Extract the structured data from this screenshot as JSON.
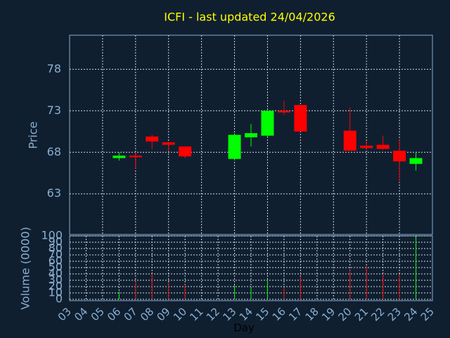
{
  "chart_data": {
    "type": "candlestick",
    "title": "ICFI - last updated 24/04/2026",
    "ylabel": "Price",
    "xlabel": "Day",
    "up_color": "#00ff00",
    "down_color": "#ff0000",
    "grid": true,
    "x": [
      6,
      7,
      8,
      9,
      10,
      13,
      14,
      15,
      16,
      17,
      20,
      21,
      22,
      23,
      24
    ],
    "open": [
      67.3,
      67.6,
      69.9,
      69.2,
      68.7,
      67.2,
      69.8,
      70.0,
      73.0,
      73.7,
      70.6,
      68.8,
      68.9,
      68.2,
      66.6
    ],
    "high": [
      68.0,
      68.0,
      70.1,
      69.3,
      68.7,
      70.3,
      71.4,
      73.0,
      74.2,
      73.7,
      73.4,
      69.4,
      70.0,
      69.5,
      68.0
    ],
    "low": [
      67.0,
      66.0,
      68.4,
      68.1,
      67.3,
      67.0,
      68.7,
      69.8,
      72.5,
      70.5,
      68.2,
      68.3,
      68.3,
      64.4,
      65.8
    ],
    "close": [
      67.6,
      67.4,
      69.3,
      68.9,
      67.5,
      70.1,
      70.3,
      73.0,
      72.8,
      70.5,
      68.2,
      68.5,
      68.4,
      66.9,
      67.3
    ],
    "ylim": [
      58.1,
      82.1
    ],
    "yticks": [
      63,
      68,
      73,
      78
    ],
    "xlim": [
      3,
      25
    ],
    "xticks": [
      {
        "value": 3,
        "label": "03"
      },
      {
        "value": 4,
        "label": "04"
      },
      {
        "value": 5,
        "label": "05"
      },
      {
        "value": 6,
        "label": "06"
      },
      {
        "value": 7,
        "label": "07"
      },
      {
        "value": 8,
        "label": "08"
      },
      {
        "value": 9,
        "label": "09"
      },
      10,
      11,
      12,
      13,
      14,
      15,
      16,
      17,
      18,
      19,
      20,
      21,
      22,
      23,
      24,
      25
    ],
    "volume": {
      "ylabel": "Volume (0000)",
      "values": [
        12,
        28,
        40,
        26,
        23,
        22,
        19,
        30,
        19,
        36,
        46,
        53,
        39,
        39,
        98
      ],
      "ylim": [
        0,
        100
      ],
      "yticks": [
        0,
        10,
        20,
        30,
        40,
        50,
        60,
        70,
        80,
        90,
        100
      ]
    }
  }
}
